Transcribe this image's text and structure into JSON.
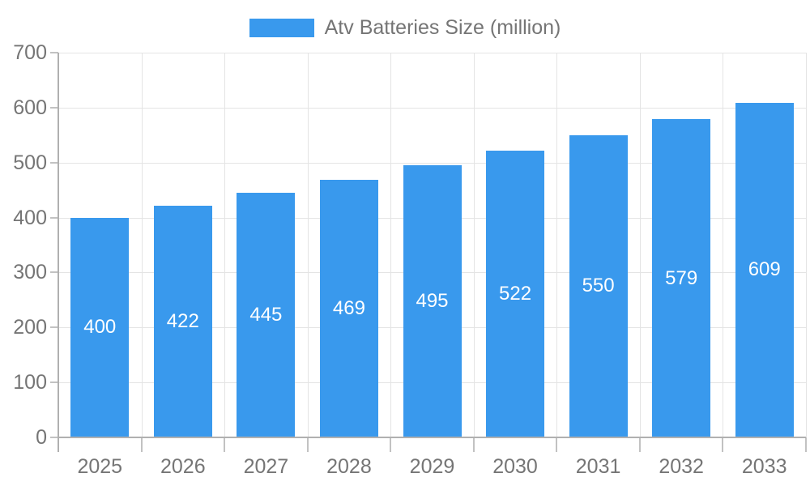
{
  "legend": {
    "label": "Atv Batteries Size (million)"
  },
  "chart_data": {
    "type": "bar",
    "title": "Atv Batteries Size (million)",
    "categories": [
      "2025",
      "2026",
      "2027",
      "2028",
      "2029",
      "2030",
      "2031",
      "2032",
      "2033"
    ],
    "values": [
      400,
      422,
      445,
      469,
      495,
      522,
      550,
      579,
      609
    ],
    "series_name": "Atv Batteries Size (million)",
    "xlabel": "",
    "ylabel": "",
    "ylim": [
      0,
      700
    ],
    "yticks": [
      0,
      100,
      200,
      300,
      400,
      500,
      600,
      700
    ],
    "grid": true,
    "legend_position": "top-center",
    "value_labels": "centered-inside-bars"
  },
  "colors": {
    "bar": "#3999ed",
    "value_label": "#ffffff",
    "grid": "#e4e4e4",
    "axis": "#b0b0b0",
    "tick": "#c2c2c2",
    "text": "#757575",
    "background": "#ffffff"
  }
}
